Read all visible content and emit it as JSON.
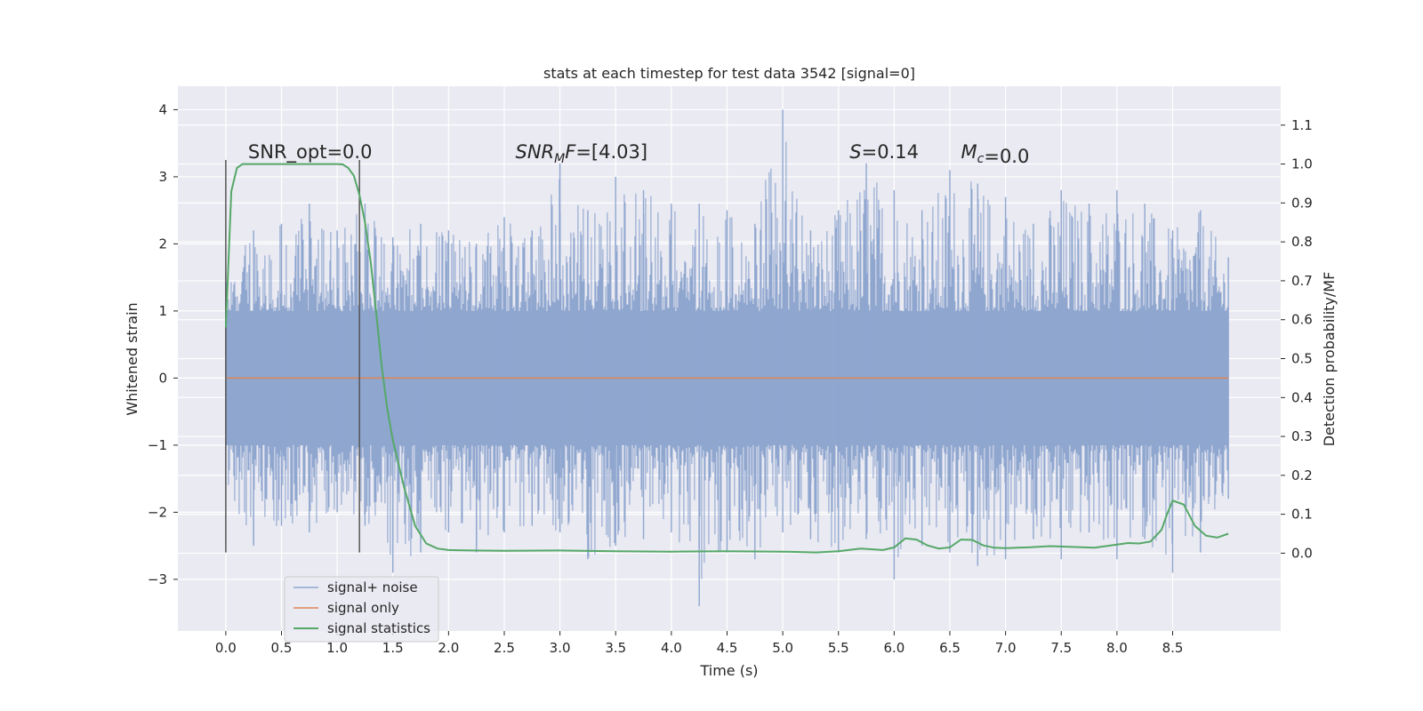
{
  "chart_data": {
    "type": "line",
    "title": "stats at each timestep for test data 3542 [signal=0]",
    "xlabel": "Time (s)",
    "ylabel": "Whitened strain",
    "y2label": "Detection probability/MF",
    "xlim": [
      -0.43,
      9.47
    ],
    "ylim": [
      -3.77,
      4.35
    ],
    "y2lim": [
      -0.2,
      1.2
    ],
    "xticks": [
      0.0,
      0.5,
      1.0,
      1.5,
      2.0,
      2.5,
      3.0,
      3.5,
      4.0,
      4.5,
      5.0,
      5.5,
      6.0,
      6.5,
      7.0,
      7.5,
      8.0,
      8.5
    ],
    "xtick_labels": [
      "0.0",
      "0.5",
      "1.0",
      "1.5",
      "2.0",
      "2.5",
      "3.0",
      "3.5",
      "4.0",
      "4.5",
      "5.0",
      "5.5",
      "6.0",
      "6.5",
      "7.0",
      "7.5",
      "8.0",
      "8.5"
    ],
    "yticks": [
      4,
      3,
      2,
      1,
      0,
      -1,
      -2,
      -3
    ],
    "ytick_labels": [
      "4",
      "3",
      "2",
      "1",
      "0",
      "−1",
      "−2",
      "−3"
    ],
    "y2ticks": [
      1.1,
      1.0,
      0.9,
      0.8,
      0.7,
      0.6,
      0.5,
      0.4,
      0.3,
      0.2,
      0.1,
      0.0
    ],
    "y2tick_labels": [
      "1.1",
      "1.0",
      "0.9",
      "0.8",
      "0.7",
      "0.6",
      "0.5",
      "0.4",
      "0.3",
      "0.2",
      "0.1",
      "0.0"
    ],
    "grid": true,
    "legend_position": "lower-left",
    "series": [
      {
        "name": "signal+ noise",
        "color": "#8fa6cf",
        "x_range": [
          0.0,
          9.0
        ],
        "upper_envelope_x": [
          0.0,
          0.25,
          0.5,
          0.75,
          1.0,
          1.25,
          1.5,
          1.75,
          2.0,
          2.25,
          2.5,
          2.75,
          3.0,
          3.25,
          3.5,
          3.75,
          4.0,
          4.25,
          4.5,
          4.75,
          5.0,
          5.25,
          5.5,
          5.75,
          6.0,
          6.25,
          6.5,
          6.75,
          7.0,
          7.25,
          7.5,
          7.75,
          8.0,
          8.25,
          8.5,
          8.75,
          9.0
        ],
        "upper_envelope_y": [
          1.6,
          2.2,
          2.3,
          2.6,
          2.2,
          2.6,
          2.1,
          2.3,
          2.2,
          2.0,
          2.4,
          2.2,
          3.2,
          2.5,
          3.0,
          2.8,
          2.6,
          2.6,
          2.5,
          2.3,
          4.0,
          2.2,
          2.5,
          3.2,
          2.8,
          2.5,
          3.1,
          2.9,
          2.7,
          2.3,
          2.8,
          2.6,
          2.8,
          2.6,
          2.2,
          2.5,
          1.8
        ],
        "lower_envelope_x": [
          0.0,
          0.25,
          0.5,
          0.75,
          1.0,
          1.25,
          1.5,
          1.75,
          2.0,
          2.25,
          2.5,
          2.75,
          3.0,
          3.25,
          3.5,
          3.75,
          4.0,
          4.25,
          4.5,
          4.75,
          5.0,
          5.25,
          5.5,
          5.75,
          6.0,
          6.25,
          6.5,
          6.75,
          7.0,
          7.25,
          7.5,
          7.75,
          8.0,
          8.25,
          8.5,
          8.75,
          9.0
        ],
        "lower_envelope_y": [
          -1.6,
          -2.5,
          -2.2,
          -2.3,
          -2.0,
          -2.2,
          -2.9,
          -2.6,
          -2.3,
          -2.6,
          -2.3,
          -2.2,
          -2.3,
          -2.7,
          -2.5,
          -2.4,
          -2.3,
          -3.4,
          -2.6,
          -2.7,
          -2.3,
          -2.4,
          -2.6,
          -2.4,
          -3.0,
          -2.5,
          -2.6,
          -2.8,
          -2.7,
          -2.4,
          -2.7,
          -2.3,
          -2.7,
          -2.4,
          -2.9,
          -2.6,
          -1.8
        ]
      },
      {
        "name": "signal only",
        "color": "#dd8452",
        "x": [
          0.0,
          9.0
        ],
        "y": [
          0.0,
          0.0
        ]
      },
      {
        "name": "signal statistics",
        "color": "#55a868",
        "axis": "right",
        "x": [
          0.0,
          0.05,
          0.1,
          0.15,
          0.2,
          0.3,
          0.5,
          0.7,
          0.9,
          1.0,
          1.05,
          1.1,
          1.15,
          1.2,
          1.25,
          1.3,
          1.35,
          1.4,
          1.45,
          1.5,
          1.6,
          1.7,
          1.8,
          1.9,
          2.0,
          2.2,
          2.5,
          3.0,
          3.5,
          4.0,
          4.5,
          5.0,
          5.3,
          5.5,
          5.7,
          5.9,
          6.0,
          6.1,
          6.2,
          6.3,
          6.4,
          6.5,
          6.6,
          6.7,
          6.8,
          6.9,
          7.0,
          7.2,
          7.4,
          7.6,
          7.8,
          7.9,
          8.0,
          8.1,
          8.2,
          8.3,
          8.4,
          8.45,
          8.5,
          8.55,
          8.6,
          8.7,
          8.8,
          8.9,
          9.0
        ],
        "y": [
          0.58,
          0.93,
          0.99,
          1.0,
          1.0,
          1.0,
          1.0,
          1.0,
          1.0,
          1.0,
          0.999,
          0.99,
          0.97,
          0.92,
          0.85,
          0.75,
          0.62,
          0.48,
          0.37,
          0.29,
          0.17,
          0.07,
          0.025,
          0.012,
          0.008,
          0.007,
          0.006,
          0.007,
          0.005,
          0.004,
          0.005,
          0.004,
          0.002,
          0.005,
          0.012,
          0.008,
          0.015,
          0.038,
          0.035,
          0.02,
          0.012,
          0.015,
          0.035,
          0.034,
          0.02,
          0.014,
          0.013,
          0.015,
          0.018,
          0.016,
          0.014,
          0.018,
          0.022,
          0.026,
          0.025,
          0.03,
          0.06,
          0.1,
          0.135,
          0.13,
          0.125,
          0.07,
          0.045,
          0.04,
          0.05
        ]
      }
    ],
    "vlines": [
      {
        "x": 0.0,
        "ymin": -2.6,
        "ymax": 3.25,
        "color": "#555555"
      },
      {
        "x": 1.2,
        "ymin": -2.6,
        "ymax": 3.25,
        "color": "#555555"
      }
    ],
    "annotations": [
      {
        "x": 0.2,
        "y": 3.25,
        "text": "SNR_opt=0.0",
        "style": "normal"
      },
      {
        "x": 2.6,
        "y": 3.25,
        "text_italic": "SNR",
        "text_sub": "M",
        "text_rest_italic": "F",
        "text_tail": "=[4.03]"
      },
      {
        "x": 5.6,
        "y": 3.25,
        "text_italic": "S",
        "text_tail": "=0.14"
      },
      {
        "x": 6.6,
        "y": 3.25,
        "text_italic": "M",
        "text_sub": "c",
        "text_tail": "=0.0"
      }
    ]
  }
}
